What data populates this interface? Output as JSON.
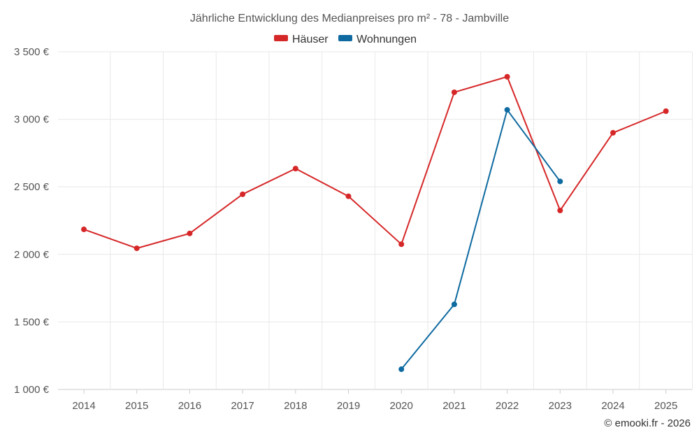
{
  "chart_data": {
    "type": "line",
    "title": "Jährliche Entwicklung des Medianpreises pro m² - 78 - Jambville",
    "xlabel": "",
    "ylabel": "",
    "categories": [
      "2014",
      "2015",
      "2016",
      "2017",
      "2018",
      "2019",
      "2020",
      "2021",
      "2022",
      "2023",
      "2024",
      "2025"
    ],
    "ylim": [
      1000,
      3500
    ],
    "yticks": [
      1000,
      1500,
      2000,
      2500,
      3000,
      3500
    ],
    "ytick_labels": [
      "1 000 €",
      "1 500 €",
      "2 000 €",
      "2 500 €",
      "3 000 €",
      "3 500 €"
    ],
    "grid": true,
    "legend_position": "top-center",
    "series": [
      {
        "name": "Häuser",
        "color": "#d62728",
        "values": [
          2185,
          2045,
          2155,
          2445,
          2635,
          2430,
          2075,
          3200,
          3315,
          2325,
          2900,
          3060
        ]
      },
      {
        "name": "Wohnungen",
        "color": "#0e6aa0",
        "values": [
          null,
          null,
          null,
          null,
          null,
          null,
          1150,
          1630,
          3070,
          2540,
          null,
          null
        ]
      }
    ]
  },
  "credit": "© emooki.fr - 2026"
}
